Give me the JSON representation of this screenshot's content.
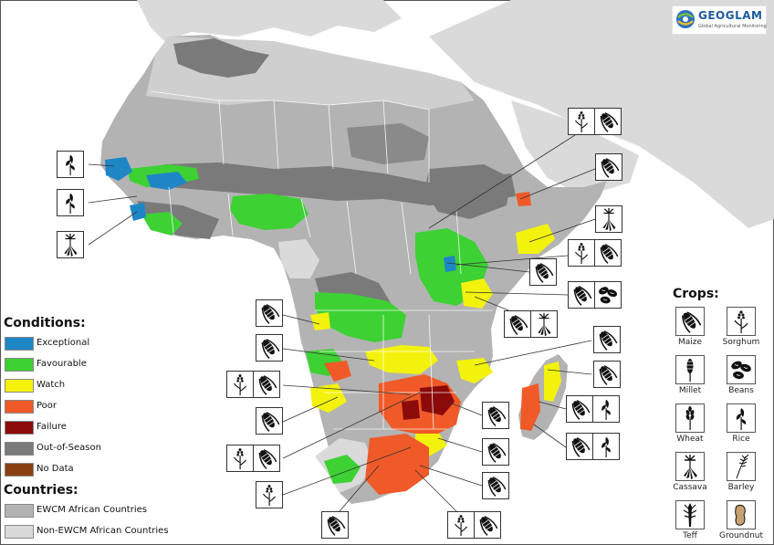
{
  "logo": {
    "title": "GEOGLAM",
    "subtitle": "Global Agricultural Monitoring"
  },
  "legend": {
    "conditions_title": "Conditions:",
    "conditions": [
      {
        "label": "Exceptional",
        "color": "#1f86c6"
      },
      {
        "label": "Favourable",
        "color": "#3dd134"
      },
      {
        "label": "Watch",
        "color": "#f2f20c"
      },
      {
        "label": "Poor",
        "color": "#f05a28"
      },
      {
        "label": "Failure",
        "color": "#8b0a0a"
      },
      {
        "label": "Out-of-Season",
        "color": "#7a7a7a"
      },
      {
        "label": "No Data",
        "color": "#8a3f10"
      }
    ],
    "countries_title": "Countries:",
    "countries": [
      {
        "label": "EWCM African Countries",
        "color": "#b3b3b3"
      },
      {
        "label": "Non-EWCM African Countries",
        "color": "#dadada"
      }
    ]
  },
  "crops_legend": {
    "title": "Crops:",
    "items": [
      {
        "label": "Maize",
        "icon": "maize-icon"
      },
      {
        "label": "Sorghum",
        "icon": "sorghum-icon"
      },
      {
        "label": "Millet",
        "icon": "millet-icon"
      },
      {
        "label": "Beans",
        "icon": "beans-icon"
      },
      {
        "label": "Wheat",
        "icon": "wheat-icon"
      },
      {
        "label": "Rice",
        "icon": "rice-icon"
      },
      {
        "label": "Cassava",
        "icon": "cassava-icon"
      },
      {
        "label": "Barley",
        "icon": "barley-icon"
      },
      {
        "label": "Teff",
        "icon": "teff-icon"
      },
      {
        "label": "Groundnut",
        "icon": "groundnut-icon"
      }
    ]
  },
  "map": {
    "colors": {
      "sea": "#ffffff",
      "ewcm": "#b3b3b3",
      "non_ewcm": "#dadada",
      "border": "#ffffff"
    },
    "callouts": [
      {
        "region": "senegal-gambia",
        "crops": [
          "rice"
        ]
      },
      {
        "region": "guinea",
        "crops": [
          "rice"
        ]
      },
      {
        "region": "sierra-leone-liberia",
        "crops": [
          "cassava"
        ]
      },
      {
        "region": "sudan-east",
        "crops": [
          "sorghum",
          "maize"
        ]
      },
      {
        "region": "somalia-north",
        "crops": [
          "maize"
        ]
      },
      {
        "region": "ethiopia-south",
        "crops": [
          "cassava"
        ]
      },
      {
        "region": "kenya",
        "crops": [
          "sorghum",
          "maize"
        ]
      },
      {
        "region": "uganda",
        "crops": [
          "maize"
        ]
      },
      {
        "region": "tanzania-coast",
        "crops": [
          "maize",
          "beans"
        ]
      },
      {
        "region": "mozambique-north",
        "crops": [
          "maize",
          "cassava"
        ]
      },
      {
        "region": "angola-north",
        "crops": [
          "maize"
        ]
      },
      {
        "region": "angola-south",
        "crops": [
          "maize"
        ]
      },
      {
        "region": "namibia-north",
        "crops": [
          "sorghum",
          "maize"
        ]
      },
      {
        "region": "botswana",
        "crops": [
          "maize"
        ]
      },
      {
        "region": "namibia-south",
        "crops": [
          "sorghum",
          "maize"
        ]
      },
      {
        "region": "south-africa-west",
        "crops": [
          "sorghum"
        ]
      },
      {
        "region": "malawi",
        "crops": [
          "maize"
        ]
      },
      {
        "region": "mozambique-central",
        "crops": [
          "maize"
        ]
      },
      {
        "region": "zimbabwe",
        "crops": [
          "maize"
        ]
      },
      {
        "region": "madagascar-north",
        "crops": [
          "maize"
        ]
      },
      {
        "region": "madagascar-east",
        "crops": [
          "maize"
        ]
      },
      {
        "region": "madagascar-west",
        "crops": [
          "maize",
          "rice"
        ]
      },
      {
        "region": "madagascar-south",
        "crops": [
          "maize",
          "rice"
        ]
      },
      {
        "region": "mozambique-south",
        "crops": [
          "maize"
        ]
      },
      {
        "region": "lesotho",
        "crops": [
          "maize"
        ]
      },
      {
        "region": "south-africa-south",
        "crops": [
          "maize"
        ]
      },
      {
        "region": "eswatini",
        "crops": [
          "sorghum",
          "maize"
        ]
      }
    ]
  }
}
